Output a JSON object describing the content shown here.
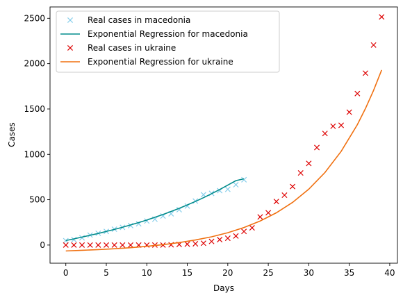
{
  "chart_data": {
    "type": "scatter",
    "title": "",
    "xlabel": "Days",
    "ylabel": "Cases",
    "xlim": [
      -1.95,
      40.95
    ],
    "ylim": [
      -200,
      2625
    ],
    "xticks": [
      0,
      5,
      10,
      15,
      20,
      25,
      30,
      35,
      40
    ],
    "yticks": [
      0,
      500,
      1000,
      1500,
      2000,
      2500
    ],
    "grid": false,
    "legend_position": "top-left",
    "series": [
      {
        "name": "Real cases in macedonia",
        "kind": "marker",
        "marker": "x",
        "color": "#87ceeb",
        "x": [
          0,
          1,
          2,
          3,
          4,
          5,
          6,
          7,
          8,
          9,
          10,
          11,
          12,
          13,
          14,
          15,
          16,
          17,
          18,
          19,
          20,
          21,
          22
        ],
        "y": [
          48,
          60,
          80,
          110,
          130,
          150,
          175,
          195,
          215,
          235,
          265,
          285,
          320,
          345,
          390,
          430,
          485,
          555,
          570,
          600,
          615,
          665,
          720
        ]
      },
      {
        "name": "Exponential Regression for macedonia",
        "kind": "line",
        "color": "#008b8b",
        "x": [
          0,
          1,
          2,
          3,
          4,
          5,
          6,
          7,
          8,
          9,
          10,
          11,
          12,
          13,
          14,
          15,
          16,
          17,
          18,
          19,
          20,
          21,
          22
        ],
        "y": [
          50,
          68,
          88,
          108,
          128,
          150,
          172,
          196,
          222,
          248,
          276,
          306,
          337,
          370,
          405,
          442,
          481,
          522,
          566,
          612,
          661,
          710,
          730
        ]
      },
      {
        "name": "Real cases in ukraine",
        "kind": "marker",
        "marker": "x",
        "color": "#dd0000",
        "x": [
          0,
          1,
          2,
          3,
          4,
          5,
          6,
          7,
          8,
          9,
          10,
          11,
          12,
          13,
          14,
          15,
          16,
          17,
          18,
          19,
          20,
          21,
          22,
          23,
          24,
          25,
          26,
          27,
          28,
          29,
          30,
          31,
          32,
          33,
          34,
          35,
          36,
          37,
          38,
          39
        ],
        "y": [
          0,
          0,
          0,
          0,
          0,
          0,
          0,
          0,
          0,
          0,
          0,
          0,
          0,
          3,
          7,
          10,
          14,
          20,
          40,
          60,
          75,
          100,
          150,
          190,
          310,
          356,
          480,
          550,
          645,
          795,
          900,
          1075,
          1230,
          1310,
          1320,
          1465,
          1670,
          1895,
          2205,
          2515
        ]
      },
      {
        "name": "Exponential Regression for ukraine",
        "kind": "line",
        "color": "#f07010",
        "x": [
          0,
          2,
          4,
          6,
          8,
          10,
          12,
          14,
          16,
          18,
          20,
          22,
          24,
          26,
          28,
          30,
          32,
          34,
          36,
          37,
          38,
          39
        ],
        "y": [
          -65,
          -58,
          -50,
          -41,
          -29,
          -14,
          4,
          27,
          56,
          91,
          136,
          193,
          265,
          356,
          470,
          616,
          800,
          1033,
          1327,
          1505,
          1705,
          1930
        ]
      }
    ]
  }
}
